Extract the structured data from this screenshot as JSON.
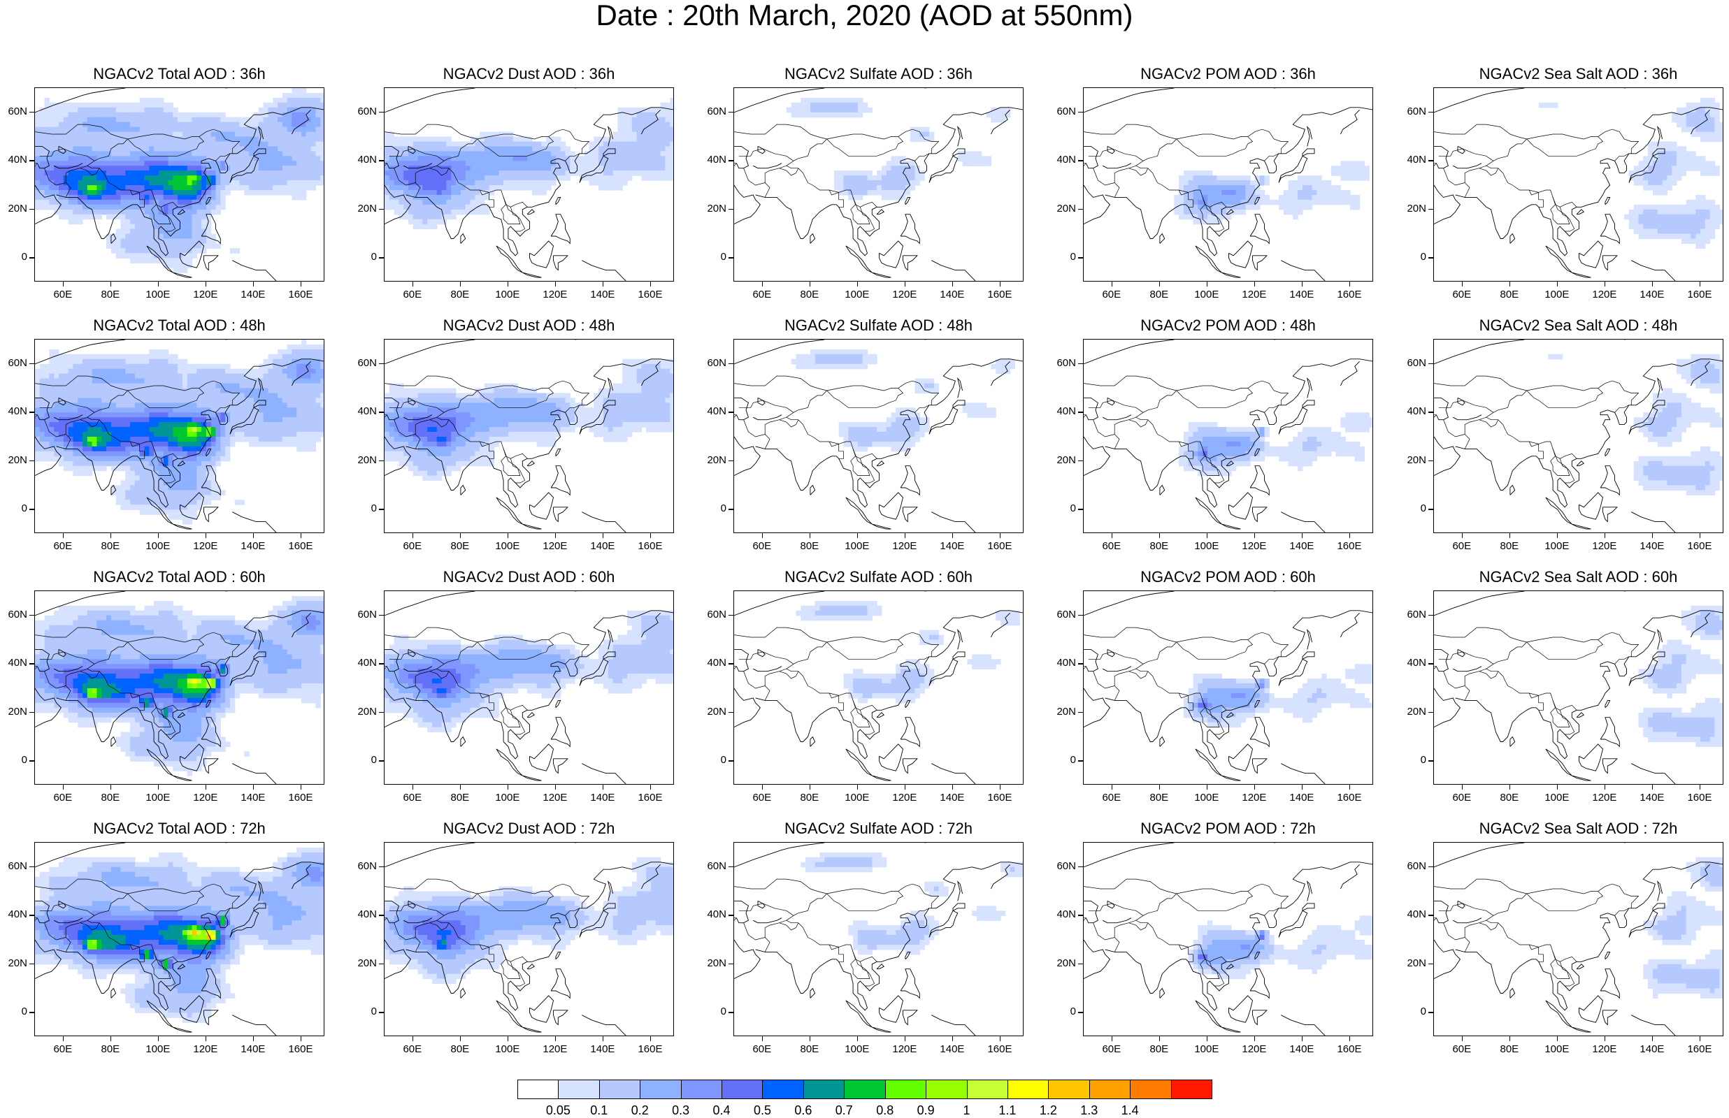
{
  "title": "Date : 20th March, 2020 (AOD at 550nm)",
  "lon_ticks": [
    "60E",
    "80E",
    "100E",
    "120E",
    "140E",
    "160E"
  ],
  "lat_ticks": [
    "60N",
    "40N",
    "20N",
    "0"
  ],
  "map_extent": {
    "lon": [
      48,
      170
    ],
    "lat": [
      -10,
      70
    ]
  },
  "panels": [
    [
      {
        "title": "NGACv2 Total AOD : 36h",
        "species": "total",
        "hour": 36
      },
      {
        "title": "NGACv2 Dust AOD : 36h",
        "species": "dust",
        "hour": 36
      },
      {
        "title": "NGACv2 Sulfate AOD : 36h",
        "species": "sulfate",
        "hour": 36
      },
      {
        "title": "NGACv2 POM AOD : 36h",
        "species": "pom",
        "hour": 36
      },
      {
        "title": "NGACv2 Sea Salt AOD : 36h",
        "species": "seasalt",
        "hour": 36
      }
    ],
    [
      {
        "title": "NGACv2 Total AOD : 48h",
        "species": "total",
        "hour": 48
      },
      {
        "title": "NGACv2 Dust AOD : 48h",
        "species": "dust",
        "hour": 48
      },
      {
        "title": "NGACv2 Sulfate AOD : 48h",
        "species": "sulfate",
        "hour": 48
      },
      {
        "title": "NGACv2 POM AOD : 48h",
        "species": "pom",
        "hour": 48
      },
      {
        "title": "NGACv2 Sea Salt AOD : 48h",
        "species": "seasalt",
        "hour": 48
      }
    ],
    [
      {
        "title": "NGACv2 Total AOD : 60h",
        "species": "total",
        "hour": 60
      },
      {
        "title": "NGACv2 Dust AOD : 60h",
        "species": "dust",
        "hour": 60
      },
      {
        "title": "NGACv2 Sulfate AOD : 60h",
        "species": "sulfate",
        "hour": 60
      },
      {
        "title": "NGACv2 POM AOD : 60h",
        "species": "pom",
        "hour": 60
      },
      {
        "title": "NGACv2 Sea Salt AOD : 60h",
        "species": "seasalt",
        "hour": 60
      }
    ],
    [
      {
        "title": "NGACv2 Total AOD : 72h",
        "species": "total",
        "hour": 72
      },
      {
        "title": "NGACv2 Dust AOD : 72h",
        "species": "dust",
        "hour": 72
      },
      {
        "title": "NGACv2 Sulfate AOD : 72h",
        "species": "sulfate",
        "hour": 72
      },
      {
        "title": "NGACv2 POM AOD : 72h",
        "species": "pom",
        "hour": 72
      },
      {
        "title": "NGACv2 Sea Salt  AOD : 72h",
        "species": "seasalt",
        "hour": 72
      }
    ]
  ],
  "colorbar": {
    "labels": [
      "0.05",
      "0.1",
      "0.2",
      "0.3",
      "0.4",
      "0.5",
      "0.6",
      "0.7",
      "0.8",
      "0.9",
      "1",
      "1.1",
      "1.2",
      "1.3",
      "1.4"
    ],
    "colors": [
      "#ffffff",
      "#d6e2ff",
      "#b5c9ff",
      "#8eb2ff",
      "#7f96ff",
      "#6370f8",
      "#0063ff",
      "#009696",
      "#00c633",
      "#63ff00",
      "#96ff00",
      "#c6ff33",
      "#ffff00",
      "#ffc600",
      "#ffa000",
      "#ff7c00",
      "#ff1900"
    ]
  }
}
